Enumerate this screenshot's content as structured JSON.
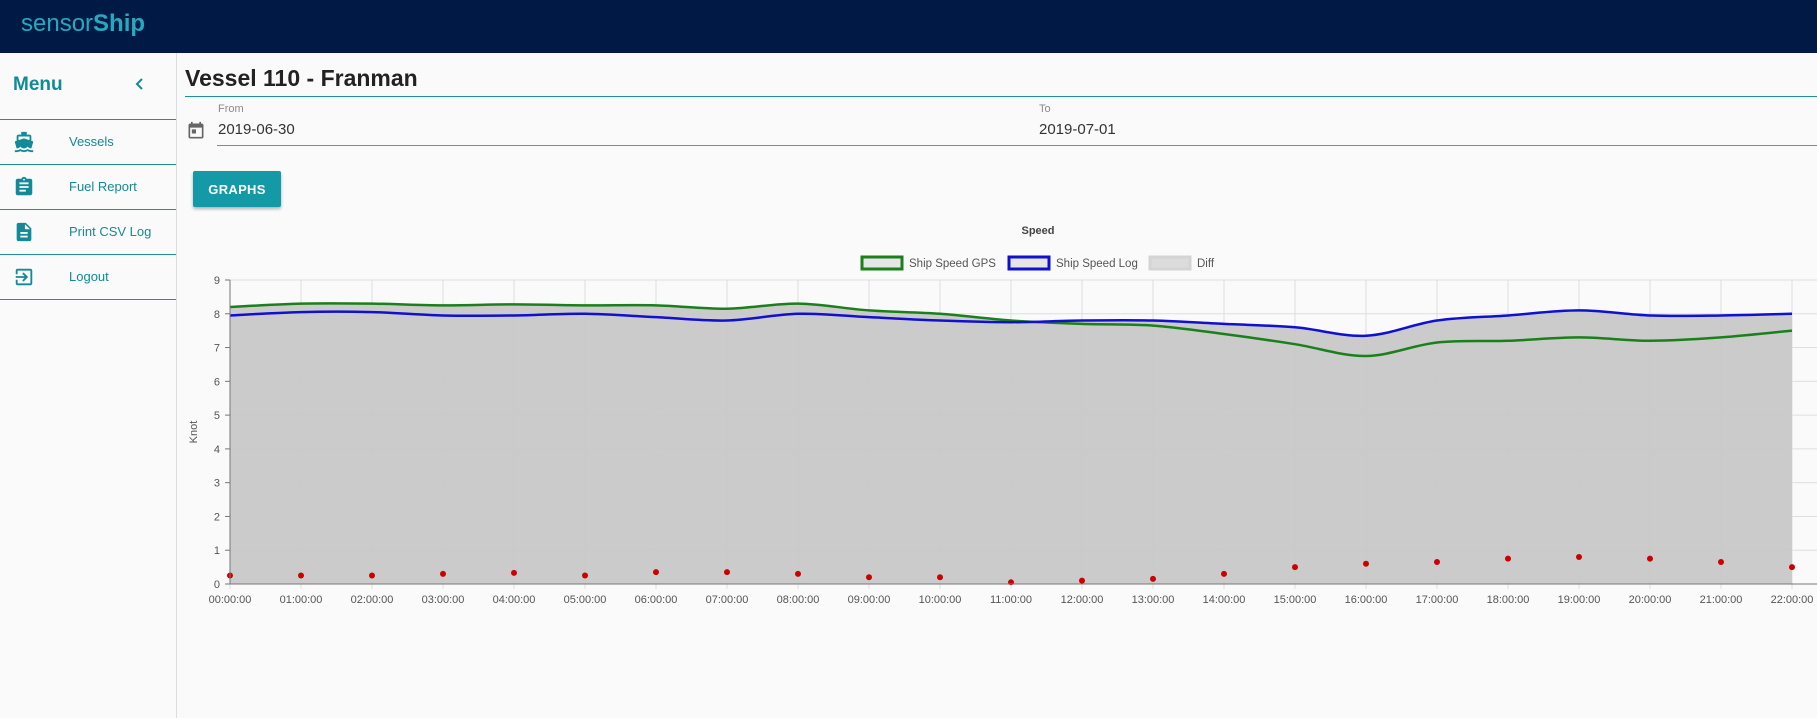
{
  "brand": {
    "light": "sensor",
    "bold": "Ship"
  },
  "menu": {
    "title": "Menu",
    "items": [
      {
        "label": "Vessels",
        "icon": "ship-icon"
      },
      {
        "label": "Fuel Report",
        "icon": "clipboard-icon"
      },
      {
        "label": "Print CSV Log",
        "icon": "document-icon"
      },
      {
        "label": "Logout",
        "icon": "logout-icon"
      }
    ]
  },
  "page": {
    "title": "Vessel 110 - Franman"
  },
  "date_range": {
    "from_label": "From",
    "from_value": "2019-06-30",
    "to_label": "To",
    "to_value": "2019-07-01"
  },
  "graphs_button": "GRAPHS",
  "colors": {
    "accent": "#139aa6",
    "topbar": "#001a46",
    "gps": "#1a801a",
    "log": "#1010d0",
    "diff_fill": "#c8c8c8",
    "points": "#cc0000"
  },
  "chart_data": {
    "type": "line",
    "title": "Speed",
    "ylabel": "Knot",
    "xlabel": "",
    "ylim": [
      0,
      9
    ],
    "yticks": [
      "0",
      "1",
      "2",
      "3",
      "4",
      "5",
      "6",
      "7",
      "8",
      "9"
    ],
    "categories": [
      "00:00:00",
      "01:00:00",
      "02:00:00",
      "03:00:00",
      "04:00:00",
      "05:00:00",
      "06:00:00",
      "07:00:00",
      "08:00:00",
      "09:00:00",
      "10:00:00",
      "11:00:00",
      "12:00:00",
      "13:00:00",
      "14:00:00",
      "15:00:00",
      "16:00:00",
      "17:00:00",
      "18:00:00",
      "19:00:00",
      "20:00:00",
      "21:00:00",
      "22:00:00"
    ],
    "legend_position": "top",
    "grid": true,
    "series": [
      {
        "name": "Ship Speed GPS",
        "values": [
          8.2,
          8.3,
          8.3,
          8.25,
          8.28,
          8.25,
          8.25,
          8.15,
          8.3,
          8.1,
          8.0,
          7.8,
          7.7,
          7.65,
          7.4,
          7.1,
          6.75,
          7.15,
          7.2,
          7.3,
          7.2,
          7.3,
          7.5
        ]
      },
      {
        "name": "Ship Speed Log",
        "values": [
          7.95,
          8.05,
          8.05,
          7.95,
          7.95,
          8.0,
          7.9,
          7.8,
          8.0,
          7.9,
          7.8,
          7.75,
          7.8,
          7.8,
          7.7,
          7.6,
          7.35,
          7.8,
          7.95,
          8.1,
          7.95,
          7.95,
          8.0
        ]
      },
      {
        "name": "Diff",
        "values": [
          0.25,
          0.25,
          0.25,
          0.3,
          0.33,
          0.25,
          0.35,
          0.35,
          0.3,
          0.2,
          0.2,
          0.05,
          0.1,
          0.15,
          0.3,
          0.5,
          0.6,
          0.65,
          0.75,
          0.8,
          0.75,
          0.65,
          0.5
        ]
      }
    ]
  }
}
